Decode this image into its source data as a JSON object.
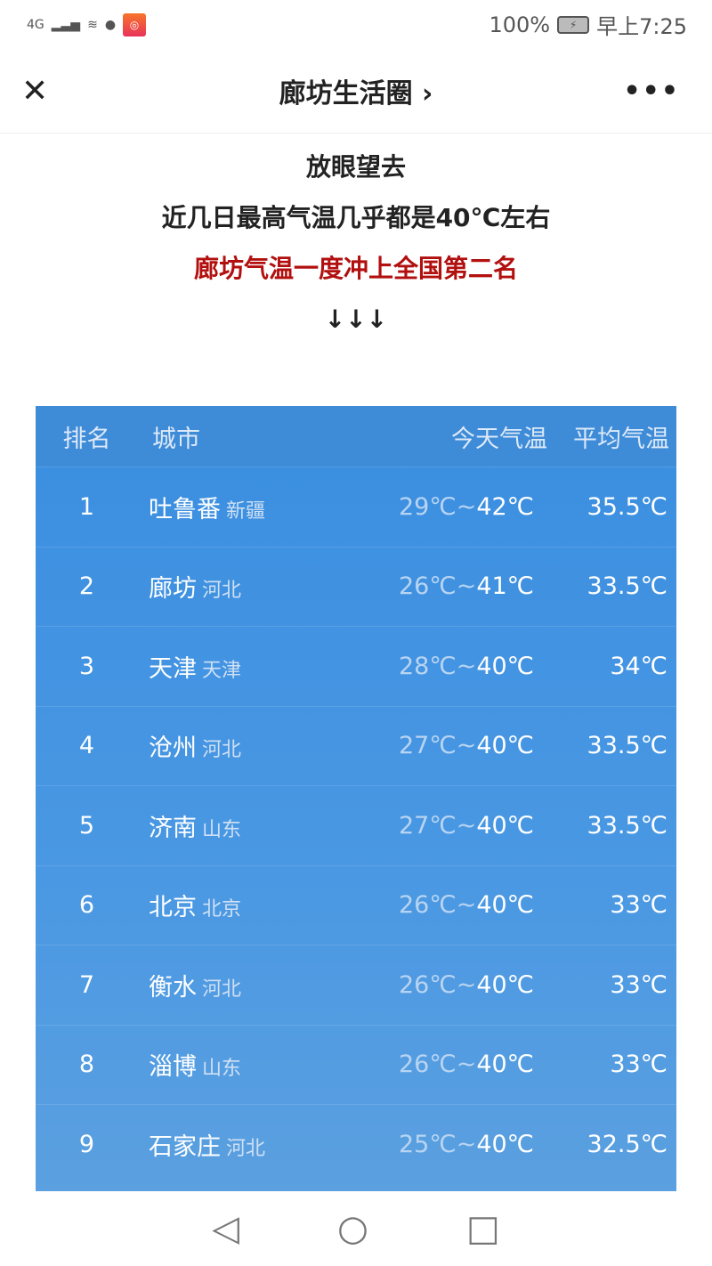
{
  "status": {
    "network": "4G",
    "battery": "100%",
    "time": "早上7:25"
  },
  "nav": {
    "title": "廊坊生活圈 ›"
  },
  "intro": {
    "line1": "放眼望去",
    "line2": "近几日最高气温几乎都是40℃左右",
    "line3": "廊坊气温一度冲上全国第二名",
    "arrows": "↓↓↓"
  },
  "table": {
    "headers": [
      "排名",
      "城市",
      "今天气温",
      "平均气温"
    ],
    "rows": [
      {
        "rank": "1",
        "city": "吐鲁番",
        "province": "新疆",
        "low": "29℃",
        "high": "42℃",
        "avg": "35.5℃"
      },
      {
        "rank": "2",
        "city": "廊坊",
        "province": "河北",
        "low": "26℃",
        "high": "41℃",
        "avg": "33.5℃"
      },
      {
        "rank": "3",
        "city": "天津",
        "province": "天津",
        "low": "28℃",
        "high": "40℃",
        "avg": "34℃"
      },
      {
        "rank": "4",
        "city": "沧州",
        "province": "河北",
        "low": "27℃",
        "high": "40℃",
        "avg": "33.5℃"
      },
      {
        "rank": "5",
        "city": "济南",
        "province": "山东",
        "low": "27℃",
        "high": "40℃",
        "avg": "33.5℃"
      },
      {
        "rank": "6",
        "city": "北京",
        "province": "北京",
        "low": "26℃",
        "high": "40℃",
        "avg": "33℃"
      },
      {
        "rank": "7",
        "city": "衡水",
        "province": "河北",
        "low": "26℃",
        "high": "40℃",
        "avg": "33℃"
      },
      {
        "rank": "8",
        "city": "淄博",
        "province": "山东",
        "low": "26℃",
        "high": "40℃",
        "avg": "33℃"
      },
      {
        "rank": "9",
        "city": "石家庄",
        "province": "河北",
        "low": "25℃",
        "high": "40℃",
        "avg": "32.5℃"
      }
    ]
  }
}
